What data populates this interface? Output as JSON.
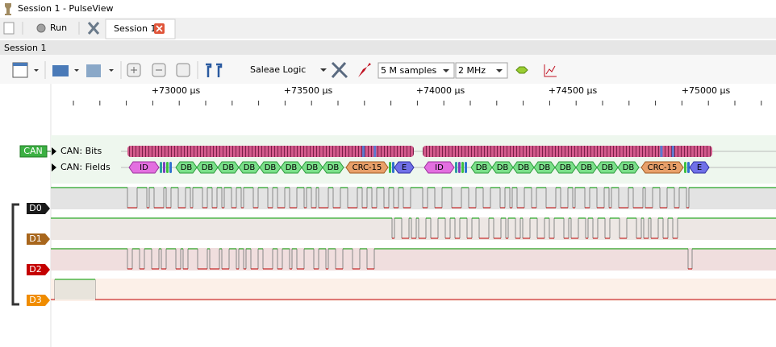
{
  "window": {
    "title": "Session 1 - PulseView"
  },
  "tabbar": {
    "run": "Run",
    "tab": "Session 1"
  },
  "session": {
    "label": "Session 1"
  },
  "toolbar": {
    "device": "Saleae Logic",
    "samples": "5 M samples",
    "rate": "2 MHz"
  },
  "ruler": {
    "labels": [
      "+73000 µs",
      "+73500 µs",
      "+74000 µs",
      "+74500 µs",
      "+75000 µs"
    ]
  },
  "decoder": {
    "badge": "CAN",
    "rows": [
      "CAN: Bits",
      "CAN: Fields"
    ],
    "frames": [
      {
        "fields": [
          "ID",
          "DB",
          "DB",
          "DB",
          "DB",
          "DB",
          "DB",
          "DB",
          "DB",
          "CRC-15",
          "E"
        ]
      },
      {
        "fields": [
          "ID",
          "DB",
          "DB",
          "DB",
          "DB",
          "DB",
          "DB",
          "DB",
          "DB",
          "CRC-15",
          "E"
        ]
      }
    ]
  },
  "channels": [
    {
      "name": "D0"
    },
    {
      "name": "D1"
    },
    {
      "name": "D2"
    },
    {
      "name": "D3"
    }
  ]
}
